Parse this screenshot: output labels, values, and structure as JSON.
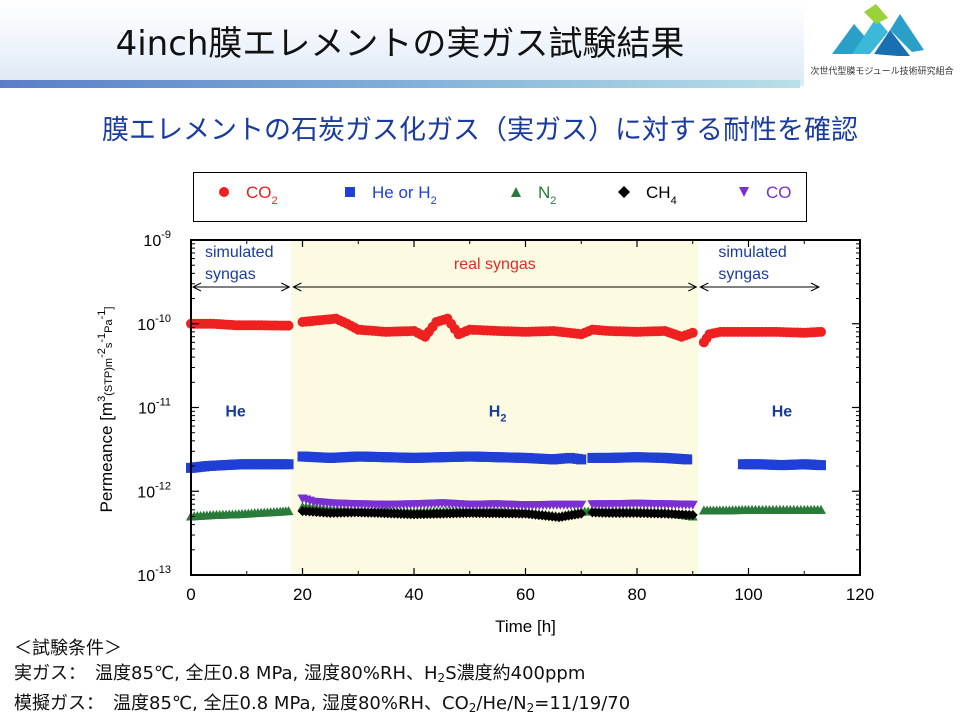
{
  "header": {
    "title": "4inch膜エレメントの実ガス試験結果",
    "org_name": "次世代型膜モジュール技術研究組合"
  },
  "subtitle": "膜エレメントの石炭ガス化ガス（実ガス）に対する耐性を確認",
  "colors": {
    "co2": "#ee2020",
    "he_h2": "#1f3fd6",
    "n2": "#2a7a3a",
    "ch4": "#000000",
    "co": "#7a30d0",
    "highlight": "#fcfbe2",
    "accent_text": "#1a3c9e"
  },
  "legend": [
    {
      "symbol": "circle",
      "pre": "CO",
      "sub": "2",
      "post": "",
      "color": "#ee2020"
    },
    {
      "symbol": "square",
      "pre": "He or H",
      "sub": "2",
      "post": "",
      "color": "#1f3fd6"
    },
    {
      "symbol": "triangle-up",
      "pre": "N",
      "sub": "2",
      "post": "",
      "color": "#2a7a3a"
    },
    {
      "symbol": "diamond",
      "pre": "CH",
      "sub": "4",
      "post": "",
      "color": "#000000"
    },
    {
      "symbol": "triangle-down",
      "pre": "CO",
      "sub": "",
      "post": "",
      "color": "#7a30d0"
    }
  ],
  "chart_data": {
    "type": "scatter",
    "xlabel": "Time [h]",
    "ylabel": "Permeance [m3(STP)m-2s-1Pa-1]",
    "x_ticks": [
      0,
      20,
      40,
      60,
      80,
      100,
      120
    ],
    "xlim": [
      0,
      120
    ],
    "y_scale": "log",
    "y_tick_exponents": [
      -13,
      -12,
      -11,
      -10,
      -9
    ],
    "ylim": [
      1e-13,
      1e-09
    ],
    "grid": false,
    "regions": [
      {
        "x": [
          0,
          18
        ],
        "label_lines": [
          "simulated",
          "syngas"
        ],
        "highlight": false
      },
      {
        "x": [
          18,
          91
        ],
        "label_lines": [
          "real syngas"
        ],
        "highlight": true
      },
      {
        "x": [
          91,
          113
        ],
        "label_lines": [
          "simulated",
          "syngas"
        ],
        "highlight": false
      }
    ],
    "gas_labels": [
      {
        "x": 8,
        "y": 4.5e-12,
        "text": "He",
        "sub": ""
      },
      {
        "x": 55,
        "y": 4.5e-12,
        "text": "H",
        "sub": "2"
      },
      {
        "x": 106,
        "y": 4.5e-12,
        "text": "He",
        "sub": ""
      }
    ],
    "series": [
      {
        "name": "CO2",
        "marker": "circle",
        "segments": [
          {
            "x": [
              0,
              4,
              8,
              12,
              16,
              17.5
            ],
            "y": [
              1e-10,
              1e-10,
              9.6e-11,
              9.6e-11,
              9.5e-11,
              9.5e-11
            ]
          },
          {
            "x": [
              20,
              23,
              26,
              28,
              30,
              35,
              40,
              42,
              44,
              46,
              48,
              50,
              55,
              60,
              65,
              70,
              72,
              75,
              80,
              85,
              88,
              90
            ],
            "y": [
              1.05e-10,
              1.1e-10,
              1.15e-10,
              1e-10,
              8.5e-11,
              8e-11,
              8.2e-11,
              7e-11,
              1.05e-10,
              1.15e-10,
              7.5e-11,
              8.5e-11,
              8.2e-11,
              8e-11,
              8.2e-11,
              7.5e-11,
              8.5e-11,
              8.2e-11,
              8e-11,
              8.2e-11,
              7e-11,
              7.8e-11
            ]
          },
          {
            "x": [
              92,
              93,
              95,
              100,
              105,
              110,
              113
            ],
            "y": [
              6e-11,
              7.5e-11,
              8e-11,
              8e-11,
              8e-11,
              7.8e-11,
              8e-11
            ]
          }
        ]
      },
      {
        "name": "He or H2",
        "marker": "square",
        "segments": [
          {
            "x": [
              0,
              3,
              6,
              9,
              12,
              15,
              17.5
            ],
            "y": [
              1.9e-12,
              2e-12,
              2.05e-12,
              2.1e-12,
              2.1e-12,
              2.1e-12,
              2.1e-12
            ]
          },
          {
            "x": [
              20,
              25,
              30,
              40,
              50,
              60,
              65,
              68,
              70
            ],
            "y": [
              2.6e-12,
              2.5e-12,
              2.6e-12,
              2.5e-12,
              2.6e-12,
              2.5e-12,
              2.4e-12,
              2.5e-12,
              2.4e-12
            ]
          },
          {
            "x": [
              72,
              75,
              80,
              85,
              89
            ],
            "y": [
              2.5e-12,
              2.5e-12,
              2.55e-12,
              2.5e-12,
              2.4e-12
            ]
          },
          {
            "x": [
              99,
              102,
              106,
              110,
              113
            ],
            "y": [
              2.1e-12,
              2.1e-12,
              2.05e-12,
              2.1e-12,
              2.05e-12
            ]
          }
        ]
      },
      {
        "name": "N2",
        "marker": "triangle-up",
        "segments": [
          {
            "x": [
              0,
              4,
              8,
              12,
              16,
              17.5
            ],
            "y": [
              5e-13,
              5.2e-13,
              5.3e-13,
              5.5e-13,
              5.7e-13,
              5.8e-13
            ]
          },
          {
            "x": [
              20,
              25,
              30,
              40,
              50,
              55,
              60,
              66,
              70,
              75,
              80,
              85,
              90
            ],
            "y": [
              6.5e-13,
              6e-13,
              5.8e-13,
              5.6e-13,
              5.8e-13,
              5.7e-13,
              5.6e-13,
              5e-13,
              5.7e-13,
              5.8e-13,
              5.7e-13,
              5.6e-13,
              5e-13
            ]
          },
          {
            "x": [
              92,
              96,
              100,
              105,
              110,
              113
            ],
            "y": [
              5.9e-13,
              5.9e-13,
              6e-13,
              6e-13,
              6e-13,
              6e-13
            ]
          }
        ]
      },
      {
        "name": "CH4",
        "marker": "diamond",
        "segments": [
          {
            "x": [
              20,
              25,
              30,
              40,
              50,
              60,
              66,
              70
            ],
            "y": [
              5.8e-13,
              5.5e-13,
              5.6e-13,
              5.3e-13,
              5.5e-13,
              5.4e-13,
              4.9e-13,
              5.4e-13
            ]
          },
          {
            "x": [
              72,
              75,
              80,
              85,
              90
            ],
            "y": [
              5.6e-13,
              5.5e-13,
              5.5e-13,
              5.4e-13,
              5.2e-13
            ]
          }
        ]
      },
      {
        "name": "CO",
        "marker": "triangle-down",
        "segments": [
          {
            "x": [
              20,
              22,
              25,
              30,
              35,
              40,
              45,
              50,
              55,
              60,
              65,
              70
            ],
            "y": [
              8.2e-13,
              7.5e-13,
              7.2e-13,
              7e-13,
              6.9e-13,
              7e-13,
              7.2e-13,
              6.9e-13,
              7e-13,
              6.8e-13,
              6.9e-13,
              6.9e-13
            ]
          },
          {
            "x": [
              72,
              75,
              80,
              85,
              90
            ],
            "y": [
              7e-13,
              7e-13,
              7.1e-13,
              7e-13,
              6.9e-13
            ]
          }
        ]
      }
    ]
  },
  "notes": {
    "heading": "＜試験条件＞",
    "real": {
      "label": "実ガス：　温度85℃, 全圧0.8 MPa, 湿度80%RH、H",
      "sub": "2",
      "rest": "S濃度約400ppm"
    },
    "simulated": {
      "label": "模擬ガス：　温度85℃, 全圧0.8 MPa, 湿度80%RH、CO",
      "sub1": "2",
      "mid": "/He/N",
      "sub2": "2",
      "rest": "=11/19/70"
    }
  }
}
